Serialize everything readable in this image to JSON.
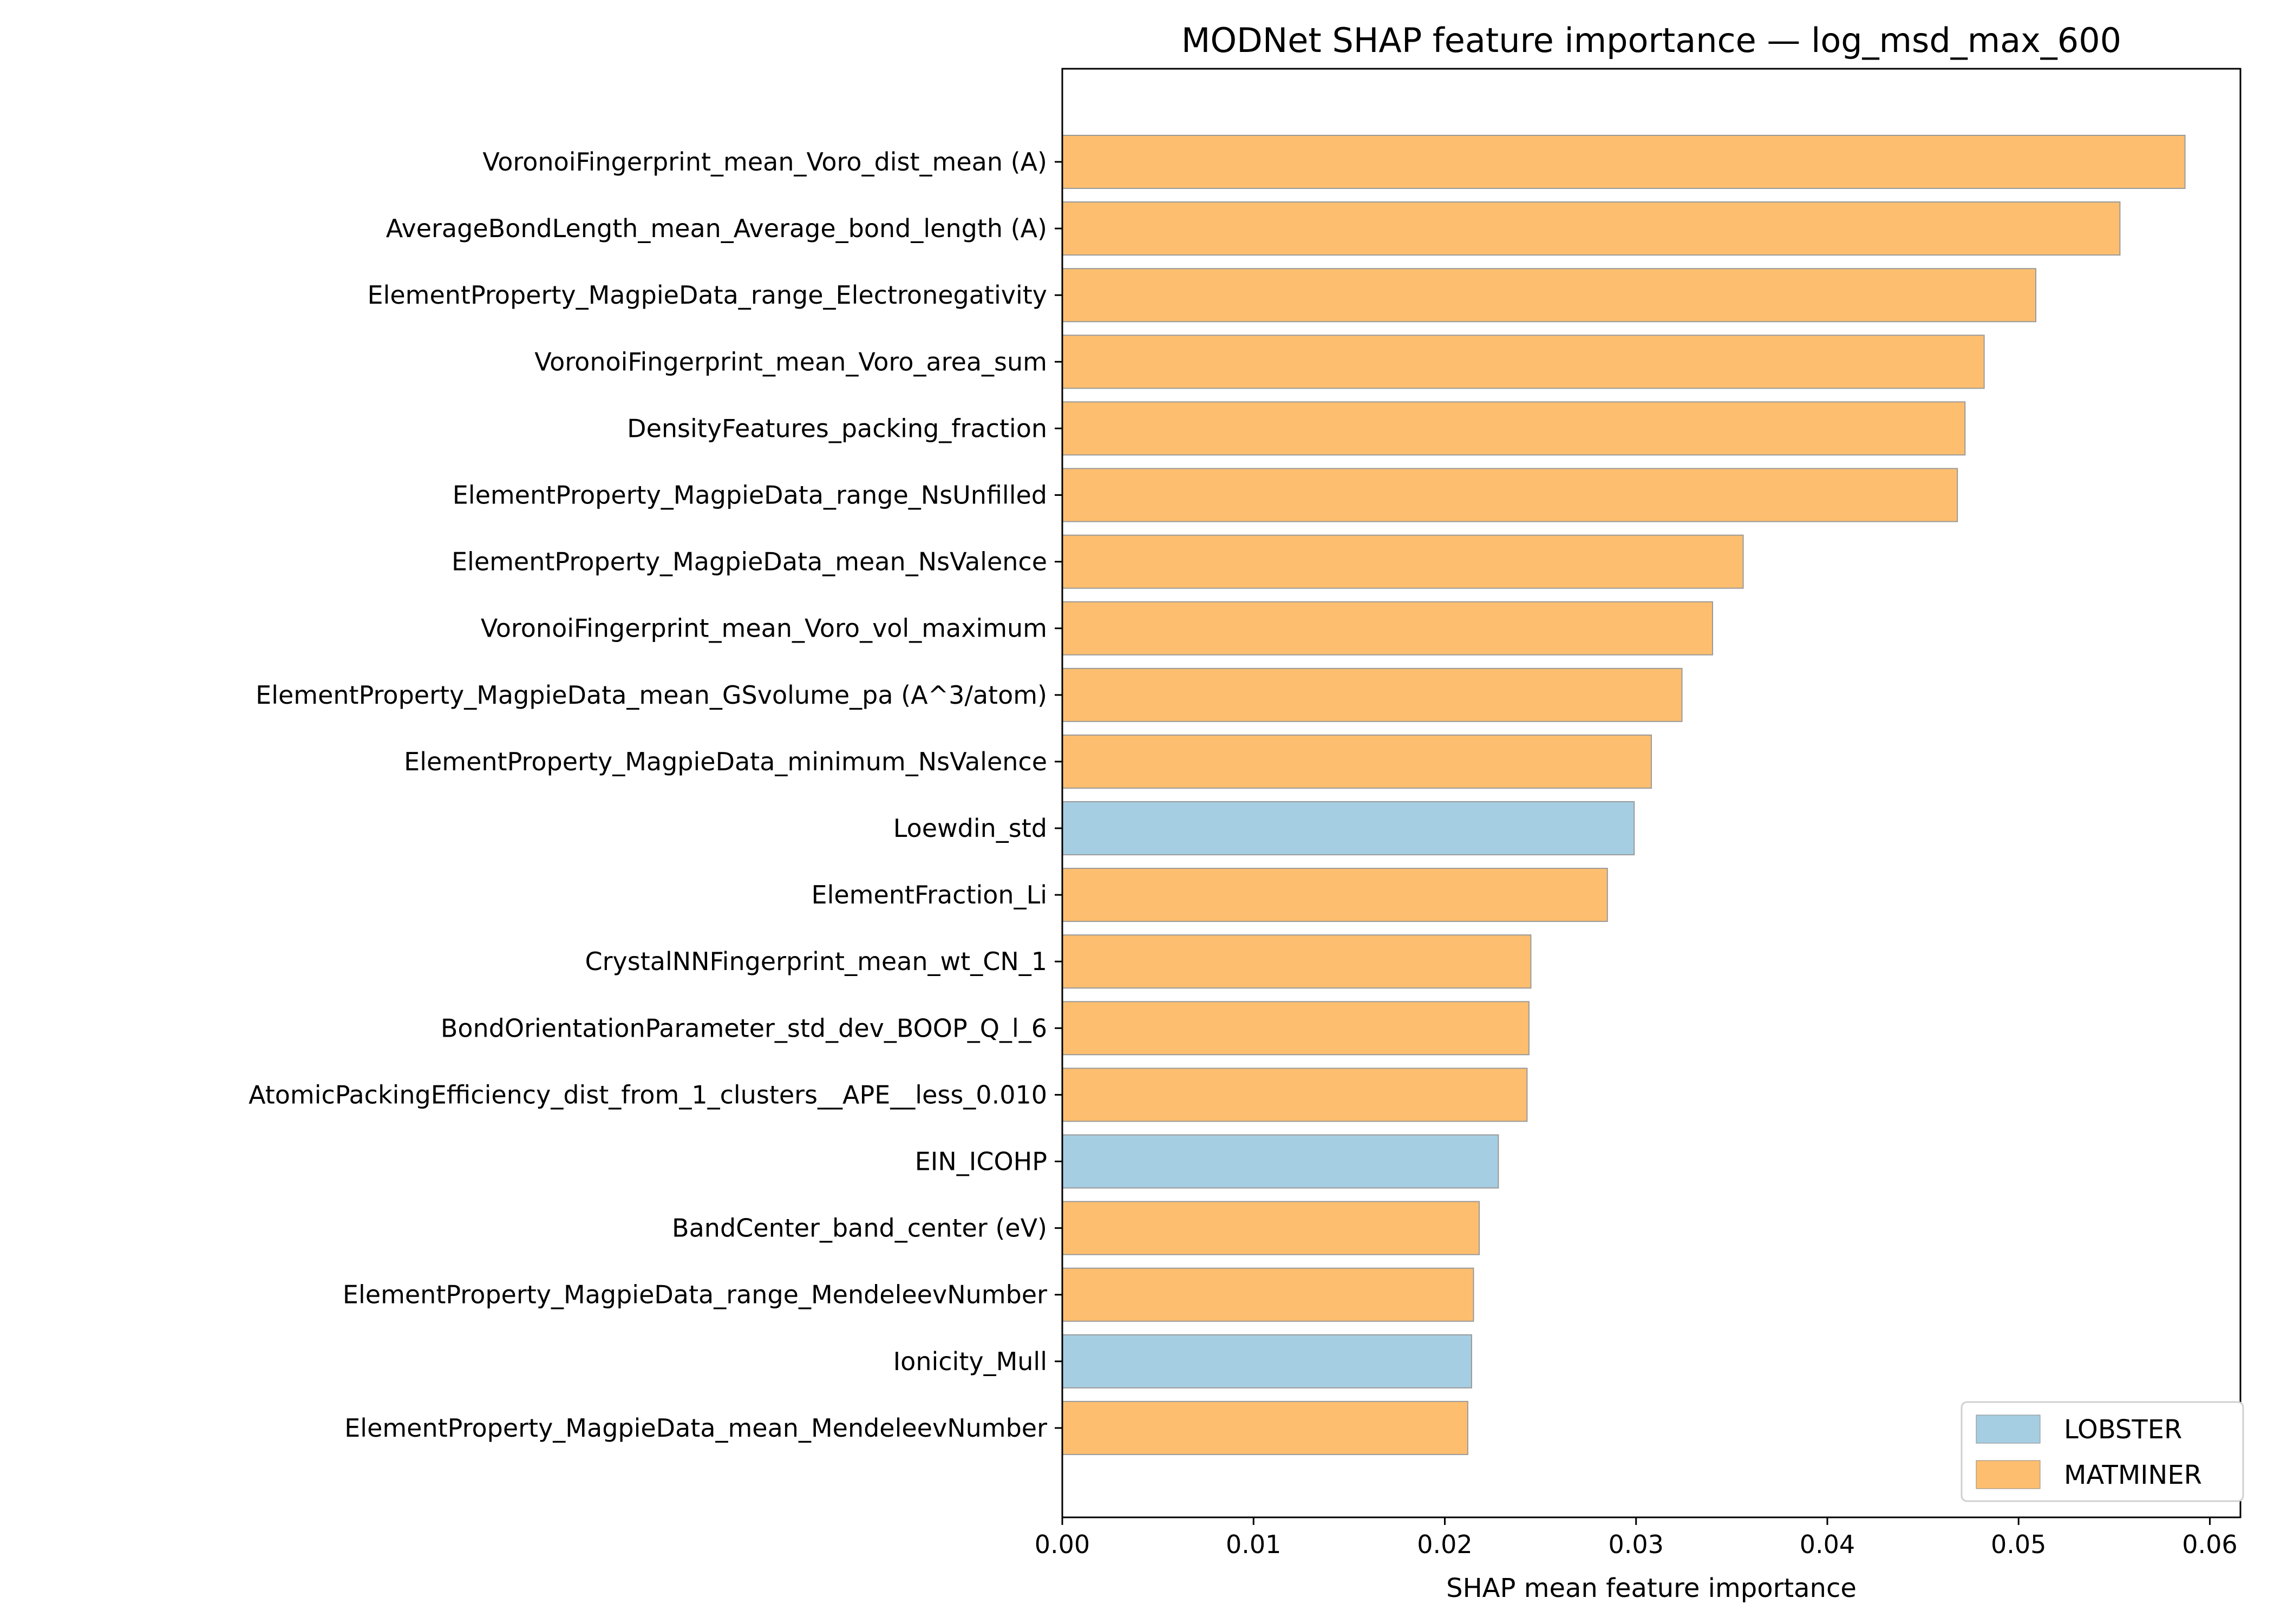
{
  "chart_data": {
    "type": "bar",
    "orientation": "horizontal",
    "title": "MODNet SHAP feature importance — log_msd_max_600",
    "xlabel": "SHAP mean feature importance",
    "ylabel": "",
    "xlim": [
      0,
      0.0616
    ],
    "xticks": [
      "0.00",
      "0.01",
      "0.02",
      "0.03",
      "0.04",
      "0.05",
      "0.06"
    ],
    "xtick_values": [
      0,
      0.01,
      0.02,
      0.03,
      0.04,
      0.05,
      0.06
    ],
    "grid": false,
    "legend_placement": "lower-right",
    "colors": {
      "LOBSTER": "#a6cee3",
      "MATMINER": "#fdbf6f"
    },
    "legend": [
      "LOBSTER",
      "MATMINER"
    ],
    "categories": [
      "VoronoiFingerprint_mean_Voro_dist_mean (A)",
      "AverageBondLength_mean_Average_bond_length (A)",
      "ElementProperty_MagpieData_range_Electronegativity",
      "VoronoiFingerprint_mean_Voro_area_sum",
      "DensityFeatures_packing_fraction",
      "ElementProperty_MagpieData_range_NsUnfilled",
      "ElementProperty_MagpieData_mean_NsValence",
      "VoronoiFingerprint_mean_Voro_vol_maximum",
      "ElementProperty_MagpieData_mean_GSvolume_pa (A^3/atom)",
      "ElementProperty_MagpieData_minimum_NsValence",
      "Loewdin_std",
      "ElementFraction_Li",
      "CrystalNNFingerprint_mean_wt_CN_1",
      "BondOrientationParameter_std_dev_BOOP_Q_l_6",
      "AtomicPackingEfficiency_dist_from_1_clusters__APE__less_0.010",
      "EIN_ICOHP",
      "BandCenter_band_center (eV)",
      "ElementProperty_MagpieData_range_MendeleevNumber",
      "Ionicity_Mull",
      "ElementProperty_MagpieData_mean_MendeleevNumber"
    ],
    "values": [
      0.0587,
      0.0553,
      0.0509,
      0.0482,
      0.0472,
      0.0468,
      0.0356,
      0.034,
      0.0324,
      0.0308,
      0.0299,
      0.0285,
      0.0245,
      0.0244,
      0.0243,
      0.0228,
      0.0218,
      0.0215,
      0.0214,
      0.0212
    ],
    "groups": [
      "MATMINER",
      "MATMINER",
      "MATMINER",
      "MATMINER",
      "MATMINER",
      "MATMINER",
      "MATMINER",
      "MATMINER",
      "MATMINER",
      "MATMINER",
      "LOBSTER",
      "MATMINER",
      "MATMINER",
      "MATMINER",
      "MATMINER",
      "LOBSTER",
      "MATMINER",
      "MATMINER",
      "LOBSTER",
      "MATMINER"
    ]
  }
}
